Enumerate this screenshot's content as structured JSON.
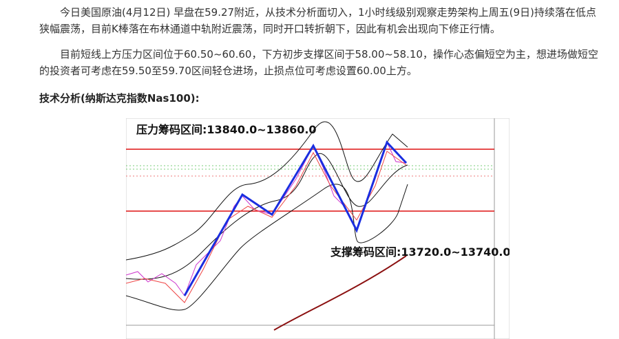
{
  "article": {
    "paragraphs": [
      "今日美国原油(4月12日) 早盘在59.27附近，从技术分析面切入，1小时线级别观察走势架构上周五(9日)持续落在低点狭幅震荡，目前K棒落在布林通道中轨附近震荡，同时开口转折朝下，因此有机会出现向下修正行情。",
      "目前短线上方压力区间位于60.50~60.60，下方初步支撑区间于58.00~58.10，操作心态偏短空为主，想进场做短空的投资者可考虑在59.50至59.70区间轻仓进场，止损点位可考虑设置60.00上方。"
    ],
    "heading": "技术分析(纳斯达克指数Nas100):",
    "image": {
      "resistance_label": "压力筹码区间:13840.0~13860.0",
      "support_label": "支撑筹码区间:13720.0~13740.0"
    }
  }
}
